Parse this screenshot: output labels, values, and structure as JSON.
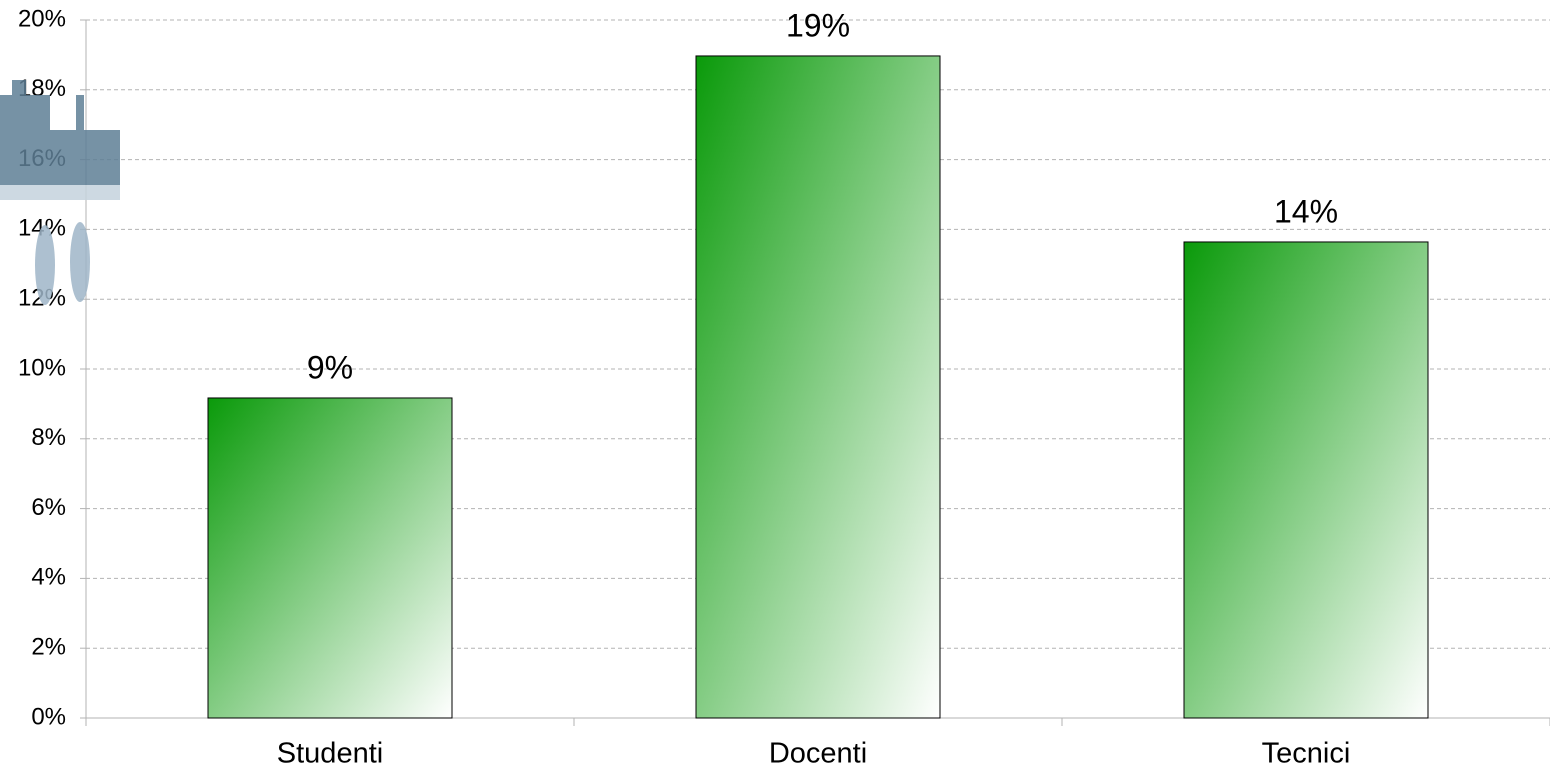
{
  "chart_data": {
    "type": "bar",
    "categories": [
      "Studenti",
      "Docenti",
      "Tecnici"
    ],
    "values": [
      9.17,
      18.97,
      13.64
    ],
    "value_labels": [
      "9%",
      "19%",
      "14%"
    ],
    "color": "#0a9a0a",
    "ylim": [
      0,
      20
    ],
    "yticks": [
      {
        "value": 0,
        "label": "0%"
      },
      {
        "value": 2,
        "label": "2%"
      },
      {
        "value": 4,
        "label": "4%"
      },
      {
        "value": 6,
        "label": "6%"
      },
      {
        "value": 8,
        "label": "8%"
      },
      {
        "value": 10,
        "label": "10%"
      },
      {
        "value": 12,
        "label": "12%"
      },
      {
        "value": 14,
        "label": "14%"
      },
      {
        "value": 16,
        "label": "16%"
      },
      {
        "value": 18,
        "label": "18%"
      },
      {
        "value": 20,
        "label": "20%"
      }
    ],
    "grid": true
  }
}
